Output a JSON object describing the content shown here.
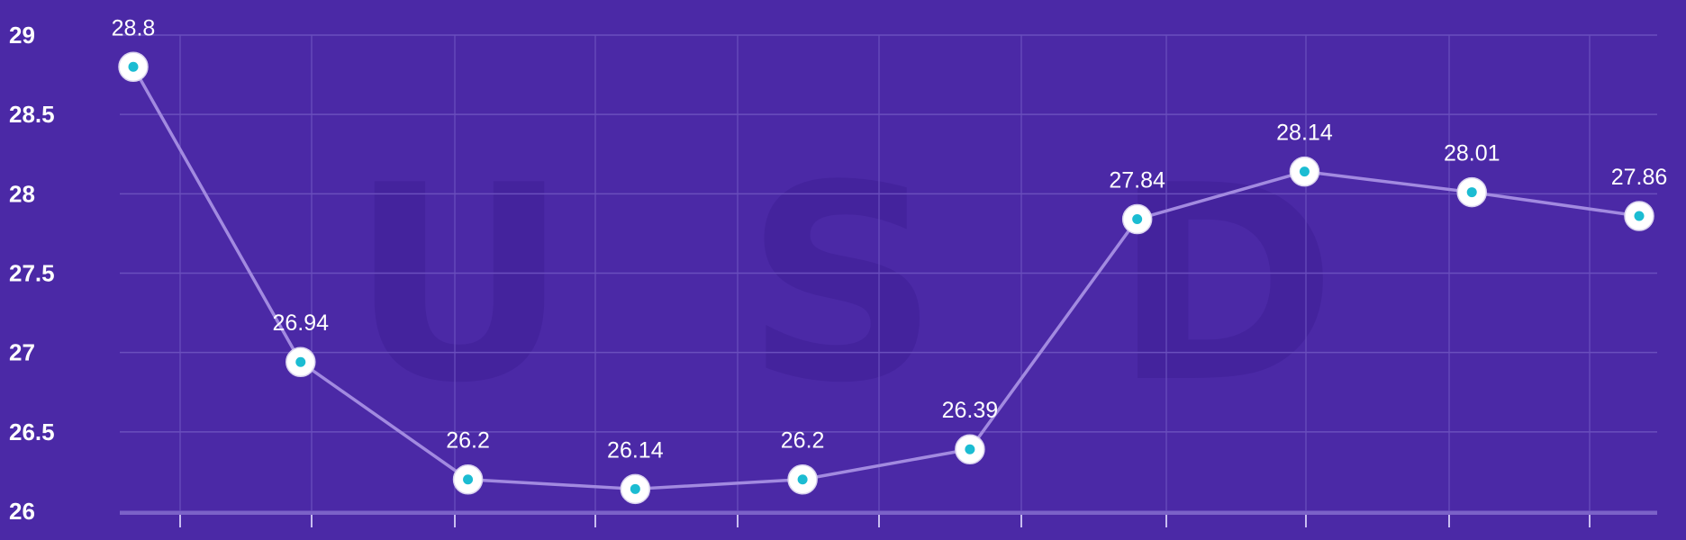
{
  "colors": {
    "background": "#4b29a6",
    "gridline": "#6a4fbd",
    "line": "#a28ae0",
    "marker_fill": "#ffffff",
    "marker_center": "#1bbcd2",
    "text": "#ffffff",
    "watermark": "#3f1f96"
  },
  "chart_data": {
    "type": "line",
    "title": "",
    "xlabel": "",
    "ylabel": "",
    "watermark": "USD",
    "ylim": [
      26,
      29
    ],
    "yticks": [
      "26",
      "26.5",
      "27",
      "27.5",
      "28",
      "28.5",
      "29"
    ],
    "values": [
      28.8,
      26.94,
      26.2,
      26.14,
      26.2,
      26.39,
      27.84,
      28.14,
      28.01,
      27.86
    ],
    "labels": [
      "28.8",
      "26.94",
      "26.2",
      "26.14",
      "26.2",
      "26.39",
      "27.84",
      "28.14",
      "28.01",
      "27.86"
    ],
    "grid": true,
    "legend": "none"
  }
}
